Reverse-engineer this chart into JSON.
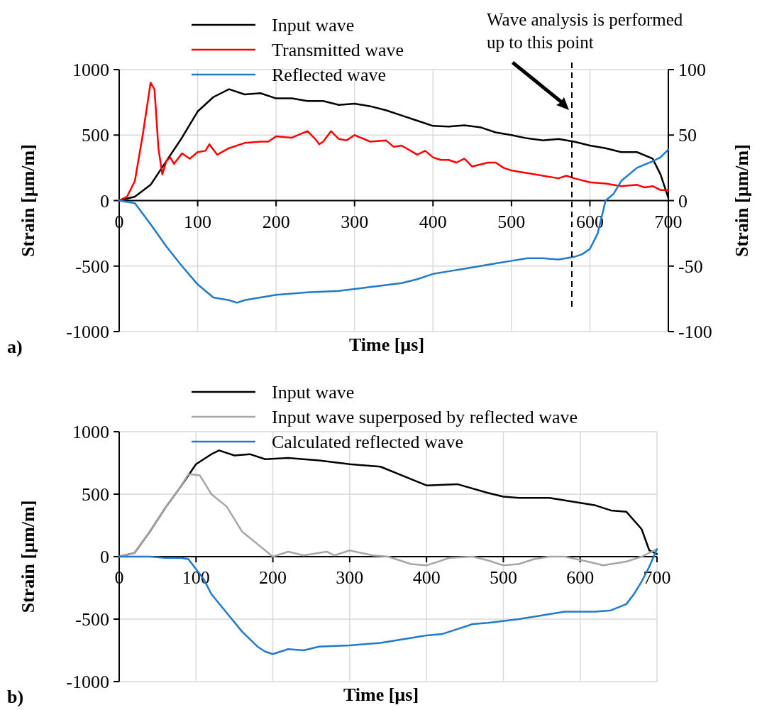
{
  "chart_data": [
    {
      "type": "line",
      "xlabel": "Time [µs]",
      "ylabel": "Strain [µm/m]",
      "y2label": "Strain [µm/m]",
      "xlim": [
        0,
        700
      ],
      "xticks": [
        0,
        100,
        200,
        300,
        400,
        500,
        600,
        700
      ],
      "ylim": [
        -1000,
        1000
      ],
      "yticks": [
        -1000,
        -500,
        0,
        500,
        1000
      ],
      "y2lim": [
        -100,
        100
      ],
      "y2ticks": [
        -100,
        -50,
        0,
        50,
        100
      ],
      "grid": true,
      "legend": "top",
      "marker": "none",
      "line_style": "solid",
      "series": [
        {
          "name": "Input wave",
          "color": "#000000",
          "x": [
            0,
            20,
            40,
            60,
            80,
            100,
            120,
            140,
            160,
            180,
            200,
            220,
            240,
            260,
            280,
            300,
            320,
            340,
            360,
            380,
            400,
            420,
            440,
            460,
            480,
            500,
            520,
            540,
            560,
            580,
            600,
            620,
            640,
            660,
            680,
            690,
            700
          ],
          "values": [
            0,
            30,
            120,
            300,
            480,
            680,
            790,
            850,
            810,
            820,
            780,
            780,
            760,
            760,
            730,
            740,
            720,
            690,
            650,
            610,
            570,
            565,
            575,
            560,
            520,
            500,
            475,
            460,
            470,
            450,
            420,
            400,
            370,
            370,
            320,
            200,
            20
          ]
        },
        {
          "name": "Transmitted wave",
          "color": "#ff0000",
          "axis": "y2",
          "x": [
            0,
            10,
            20,
            30,
            40,
            45,
            50,
            55,
            60,
            65,
            70,
            80,
            90,
            100,
            110,
            115,
            125,
            140,
            160,
            180,
            190,
            200,
            220,
            240,
            250,
            255,
            260,
            270,
            280,
            290,
            300,
            320,
            340,
            350,
            360,
            380,
            390,
            400,
            410,
            420,
            430,
            440,
            450,
            470,
            480,
            490,
            500,
            510,
            520,
            540,
            560,
            570,
            580,
            600,
            620,
            640,
            660,
            670,
            680,
            690,
            700
          ],
          "values": [
            0,
            3,
            15,
            50,
            90,
            85,
            40,
            20,
            30,
            33,
            28,
            36,
            32,
            37,
            38,
            43,
            35,
            40,
            44,
            45,
            45,
            49,
            48,
            53,
            47,
            43,
            45,
            53,
            47,
            46,
            50,
            45,
            46,
            41,
            42,
            35,
            38,
            33,
            31,
            31,
            29,
            32,
            26,
            29,
            29,
            25,
            23,
            22,
            21,
            19,
            17,
            19,
            17,
            14,
            13,
            11,
            12,
            10,
            11,
            8,
            8
          ]
        },
        {
          "name": "Reflected wave",
          "color": "#1f7acc",
          "x": [
            0,
            20,
            40,
            60,
            80,
            100,
            120,
            140,
            150,
            160,
            180,
            200,
            240,
            280,
            320,
            360,
            380,
            400,
            420,
            440,
            460,
            480,
            500,
            520,
            540,
            560,
            580,
            590,
            600,
            610,
            620,
            630,
            640,
            660,
            680,
            690,
            700
          ],
          "values": [
            0,
            -20,
            -180,
            -350,
            -500,
            -640,
            -740,
            -760,
            -780,
            -760,
            -740,
            -720,
            -700,
            -690,
            -660,
            -630,
            -600,
            -560,
            -540,
            -520,
            -500,
            -480,
            -460,
            -440,
            -440,
            -450,
            -430,
            -410,
            -370,
            -250,
            0,
            50,
            150,
            250,
            300,
            330,
            390
          ]
        }
      ],
      "ref_lines": [
        {
          "axis": "x",
          "value": 577,
          "label": "Wave analysis is performed up to this point",
          "line_style": "dashed",
          "color": "#000000"
        }
      ],
      "annotations": [
        "a)"
      ]
    },
    {
      "type": "line",
      "xlabel": "Time [µs]",
      "ylabel": "Strain [µm/m]",
      "xlim": [
        0,
        700
      ],
      "xticks": [
        0,
        100,
        200,
        300,
        400,
        500,
        600,
        700
      ],
      "ylim": [
        -1000,
        1000
      ],
      "yticks": [
        -1000,
        -500,
        0,
        500,
        1000
      ],
      "grid": true,
      "legend": "top",
      "marker": "none",
      "line_style": "solid",
      "series": [
        {
          "name": "Input wave",
          "color": "#000000",
          "x": [
            0,
            20,
            40,
            60,
            80,
            100,
            120,
            130,
            150,
            170,
            190,
            220,
            260,
            300,
            340,
            380,
            400,
            440,
            480,
            500,
            520,
            560,
            600,
            620,
            640,
            660,
            680,
            690,
            700
          ],
          "values": [
            0,
            30,
            200,
            390,
            560,
            740,
            820,
            850,
            810,
            820,
            780,
            790,
            770,
            740,
            720,
            620,
            570,
            580,
            510,
            480,
            470,
            470,
            430,
            410,
            370,
            360,
            220,
            50,
            20
          ]
        },
        {
          "name": "Input wave superposed by reflected wave",
          "color": "#a6a6a6",
          "x": [
            0,
            20,
            40,
            60,
            80,
            90,
            105,
            120,
            140,
            160,
            180,
            200,
            220,
            240,
            270,
            280,
            300,
            330,
            350,
            380,
            400,
            430,
            460,
            480,
            500,
            520,
            540,
            560,
            580,
            610,
            630,
            660,
            680,
            700
          ],
          "values": [
            0,
            30,
            200,
            390,
            560,
            660,
            650,
            500,
            400,
            200,
            100,
            0,
            40,
            10,
            40,
            10,
            50,
            10,
            0,
            -60,
            -70,
            -10,
            0,
            -30,
            -70,
            -60,
            -20,
            0,
            0,
            -40,
            -70,
            -40,
            0,
            60
          ]
        },
        {
          "name": "Calculated reflected wave",
          "color": "#1f7acc",
          "x": [
            0,
            40,
            60,
            80,
            90,
            100,
            110,
            120,
            140,
            160,
            180,
            190,
            200,
            220,
            240,
            260,
            300,
            340,
            380,
            400,
            420,
            440,
            460,
            480,
            520,
            560,
            580,
            620,
            640,
            660,
            670,
            680,
            690,
            700
          ],
          "values": [
            0,
            0,
            -10,
            -10,
            -20,
            -100,
            -180,
            -300,
            -450,
            -600,
            -720,
            -760,
            -780,
            -740,
            -750,
            -720,
            -710,
            -690,
            -650,
            -630,
            -620,
            -580,
            -540,
            -530,
            -500,
            -460,
            -440,
            -440,
            -430,
            -380,
            -300,
            -200,
            -80,
            60
          ]
        }
      ],
      "annotations": [
        "b)"
      ]
    }
  ]
}
